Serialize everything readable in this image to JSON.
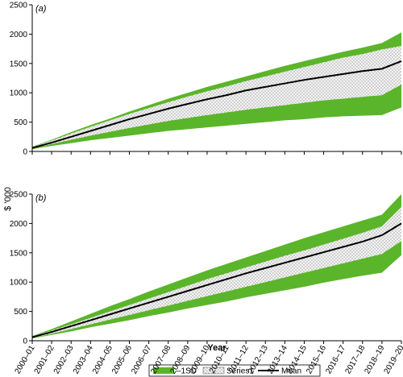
{
  "chart_data": {
    "type": "area",
    "xlabel": "Year",
    "ylabel": "$ '000",
    "categories": [
      "2000–01",
      "2001–02",
      "2002–03",
      "2003–04",
      "2004–05",
      "2005–06",
      "2006–07",
      "2007–08",
      "2008–09",
      "2009–10",
      "2010–11",
      "2011–12",
      "2012–13",
      "2013–14",
      "2014–15",
      "2015–16",
      "2016–17",
      "2017–18",
      "2018–19",
      "2019–20"
    ],
    "legend": [
      "–1SD",
      "Series1",
      "Mean"
    ],
    "legend_position": "bottom",
    "colors": {
      "band": "#5bb52a",
      "inner": "#f4f4f4",
      "mean": "#000000"
    },
    "panels": [
      {
        "label": "(a)",
        "ylim": [
          0,
          2500
        ],
        "yticks": [
          0,
          500,
          1000,
          1500,
          2000,
          2500
        ],
        "series": [
          {
            "name": "Outer upper",
            "values": [
              80,
              200,
              330,
              450,
              560,
              680,
              790,
              900,
              1000,
              1100,
              1190,
              1280,
              1370,
              1460,
              1540,
              1620,
              1700,
              1770,
              1850,
              2030
            ]
          },
          {
            "name": "Series1 upper",
            "values": [
              75,
              185,
              305,
              420,
              530,
              640,
              740,
              840,
              935,
              1025,
              1110,
              1200,
              1280,
              1360,
              1440,
              1520,
              1600,
              1660,
              1740,
              1800
            ]
          },
          {
            "name": "Mean",
            "values": [
              60,
              150,
              250,
              350,
              450,
              550,
              640,
              730,
              810,
              890,
              960,
              1040,
              1100,
              1160,
              1220,
              1270,
              1320,
              1370,
              1410,
              1540
            ]
          },
          {
            "name": "Series1 lower",
            "values": [
              50,
              125,
              200,
              270,
              335,
              400,
              460,
              520,
              570,
              620,
              665,
              710,
              750,
              790,
              830,
              870,
              900,
              930,
              960,
              1140
            ]
          },
          {
            "name": "Outer lower",
            "values": [
              40,
              95,
              140,
              190,
              230,
              270,
              310,
              350,
              380,
              410,
              440,
              470,
              500,
              530,
              550,
              580,
              600,
              610,
              620,
              750
            ]
          }
        ]
      },
      {
        "label": "(b)",
        "ylim": [
          0,
          2500
        ],
        "yticks": [
          0,
          500,
          1000,
          1500,
          2000,
          2500
        ],
        "series": [
          {
            "name": "Outer upper",
            "values": [
              80,
              200,
              330,
              460,
              590,
              710,
              840,
              960,
              1080,
              1200,
              1310,
              1420,
              1530,
              1640,
              1750,
              1850,
              1950,
              2050,
              2150,
              2500
            ]
          },
          {
            "name": "Series1 upper",
            "values": [
              75,
              175,
              280,
              390,
              500,
              610,
              720,
              830,
              940,
              1050,
              1150,
              1250,
              1350,
              1450,
              1540,
              1640,
              1740,
              1840,
              1950,
              2280
            ]
          },
          {
            "name": "Mean",
            "values": [
              60,
              150,
              250,
              350,
              450,
              550,
              650,
              750,
              850,
              950,
              1050,
              1150,
              1240,
              1330,
              1420,
              1510,
              1600,
              1690,
              1800,
              2000
            ]
          },
          {
            "name": "Series1 lower",
            "values": [
              45,
              120,
              200,
              280,
              360,
              440,
              520,
              600,
              680,
              760,
              840,
              920,
              1000,
              1080,
              1160,
              1240,
              1320,
              1400,
              1480,
              1700
            ]
          },
          {
            "name": "Outer lower",
            "values": [
              40,
              100,
              160,
              230,
              290,
              350,
              420,
              480,
              550,
              610,
              670,
              740,
              800,
              860,
              920,
              990,
              1050,
              1110,
              1160,
              1460
            ]
          }
        ]
      }
    ]
  }
}
